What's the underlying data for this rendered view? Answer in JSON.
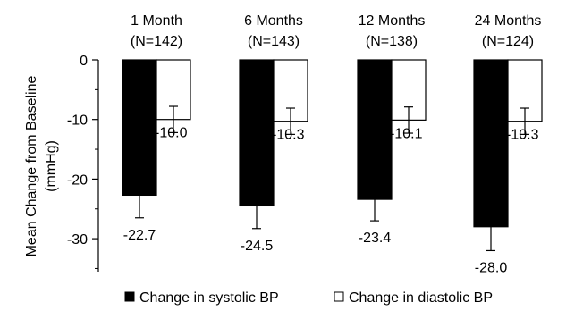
{
  "chart_data": {
    "type": "bar",
    "title": "",
    "xlabel": "",
    "ylabel": "Mean Change from Baseline\n(mmHg)",
    "ylim": [
      -35,
      0
    ],
    "yticks": [
      0,
      -10,
      -20,
      -30
    ],
    "grid": false,
    "legend_position": "bottom",
    "categories": [
      {
        "label": "1 Month",
        "n": "(N=142)"
      },
      {
        "label": "6 Months",
        "n": "(N=143)"
      },
      {
        "label": "12 Months",
        "n": "(N=138)"
      },
      {
        "label": "24 Months",
        "n": "(N=124)"
      }
    ],
    "series": [
      {
        "name": "Change in systolic BP",
        "color": "#000000",
        "values": [
          -22.7,
          -24.5,
          -23.4,
          -28.0
        ],
        "value_labels": [
          "-22.7",
          "-24.5",
          "-23.4",
          "-28.0"
        ],
        "error": [
          3.8,
          3.8,
          3.6,
          4.0
        ]
      },
      {
        "name": "Change in diastolic BP",
        "color": "#ffffff",
        "values": [
          -10.0,
          -10.3,
          -10.1,
          -10.3
        ],
        "value_labels": [
          "-10.0",
          "-10.3",
          "-10.1",
          "-10.3"
        ],
        "error": [
          2.2,
          2.2,
          2.2,
          2.2
        ]
      }
    ]
  }
}
